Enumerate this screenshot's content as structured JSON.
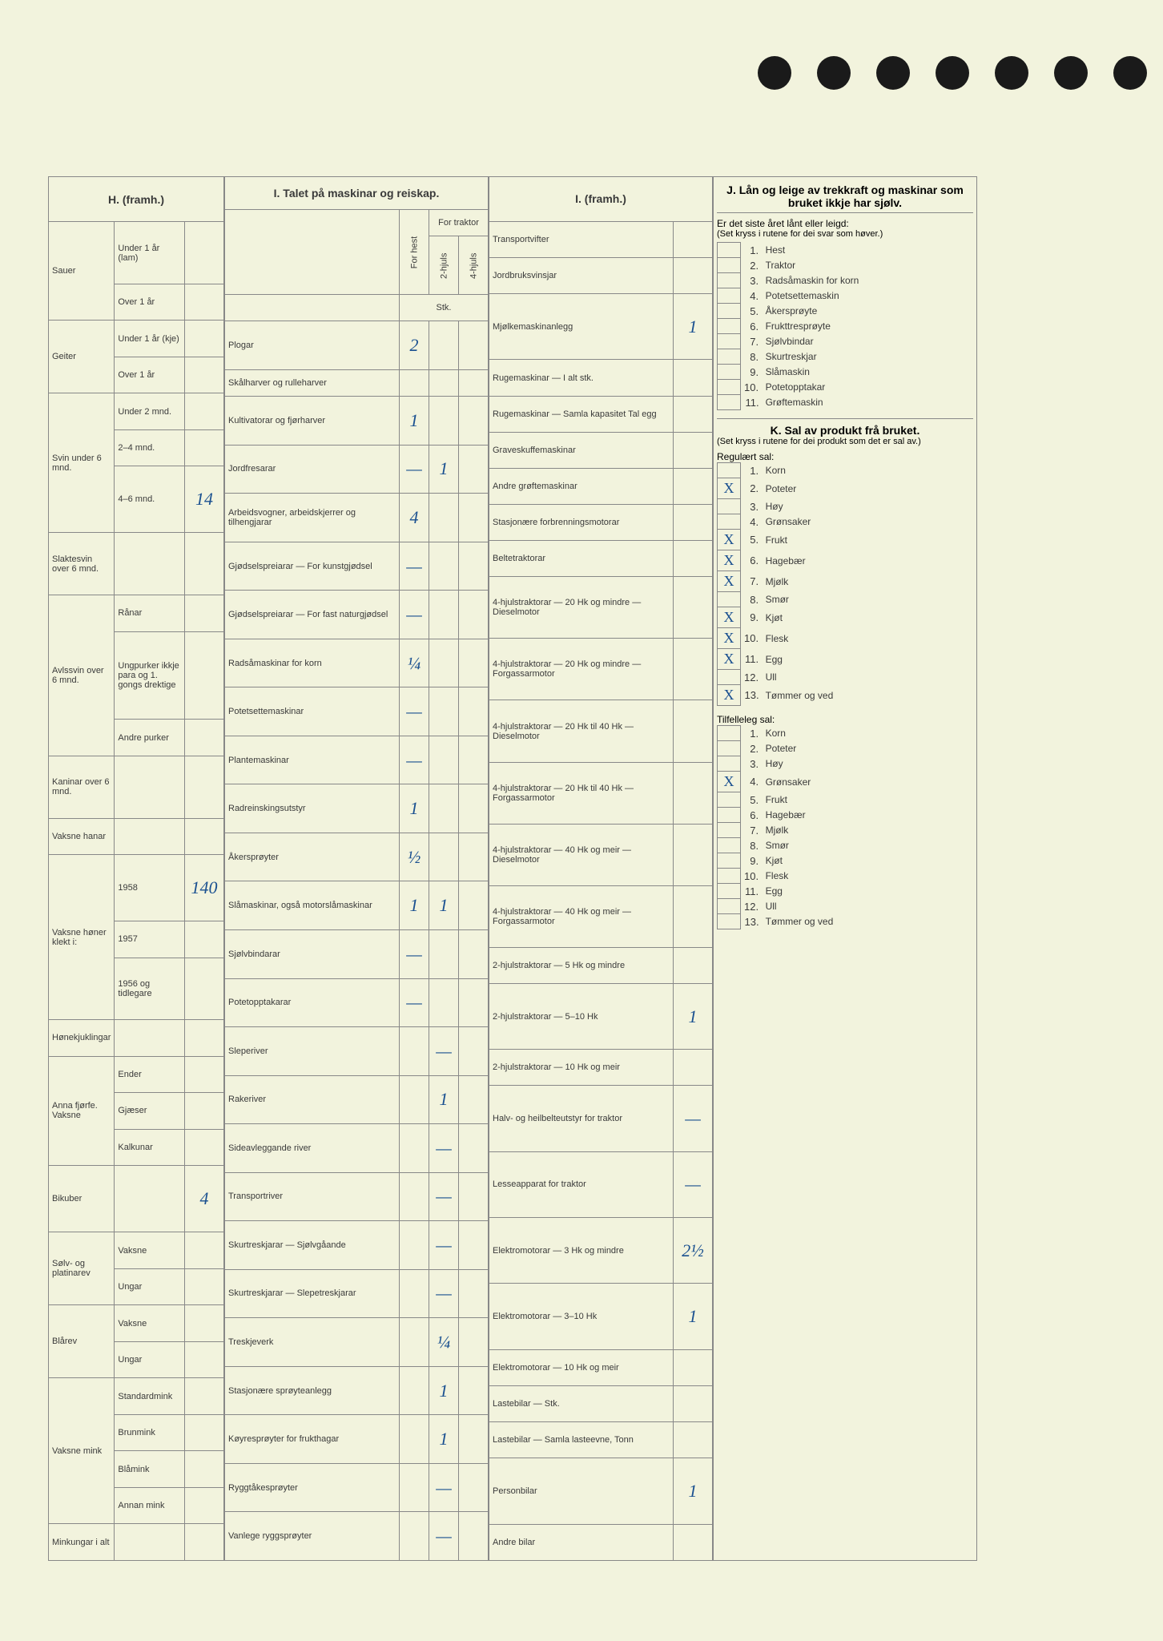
{
  "H": {
    "title": "H. (framh.)",
    "sections": [
      {
        "group": "Sauer",
        "rows": [
          {
            "l": "Under 1 år (lam)",
            "v": ""
          },
          {
            "l": "Over 1 år",
            "v": ""
          }
        ]
      },
      {
        "group": "Geiter",
        "rows": [
          {
            "l": "Under 1 år (kje)",
            "v": ""
          },
          {
            "l": "Over 1 år",
            "v": ""
          }
        ]
      },
      {
        "group": "Svin under 6 mnd.",
        "rows": [
          {
            "l": "Under 2 mnd.",
            "v": ""
          },
          {
            "l": "2–4 mnd.",
            "v": ""
          },
          {
            "l": "4–6 mnd.",
            "v": "14"
          }
        ]
      },
      {
        "group": "Slaktesvin over 6 mnd.",
        "rows": [
          {
            "l": "",
            "v": ""
          }
        ]
      },
      {
        "group": "Avlssvin over 6 mnd.",
        "rows": [
          {
            "l": "Rånar",
            "v": ""
          },
          {
            "l": "Ungpurker ikkje para og 1. gongs drektige",
            "v": ""
          },
          {
            "l": "Andre purker",
            "v": ""
          }
        ]
      },
      {
        "group": "Kaninar over 6 mnd.",
        "rows": [
          {
            "l": "",
            "v": ""
          }
        ]
      },
      {
        "group": "Vaksne hanar",
        "rows": [
          {
            "l": "",
            "v": ""
          }
        ]
      },
      {
        "group": "Vaksne høner klekt i:",
        "rows": [
          {
            "l": "1958",
            "v": "140"
          },
          {
            "l": "1957",
            "v": ""
          },
          {
            "l": "1956 og tidlegare",
            "v": ""
          }
        ]
      },
      {
        "group": "Hønekjuklingar",
        "rows": [
          {
            "l": "",
            "v": ""
          }
        ]
      },
      {
        "group": "Anna fjørfe. Vaksne",
        "rows": [
          {
            "l": "Ender",
            "v": ""
          },
          {
            "l": "Gjæser",
            "v": ""
          },
          {
            "l": "Kalkunar",
            "v": ""
          }
        ]
      },
      {
        "group": "Bikuber",
        "rows": [
          {
            "l": "",
            "v": "4"
          }
        ]
      },
      {
        "group": "Sølv- og platinarev",
        "rows": [
          {
            "l": "Vaksne",
            "v": ""
          },
          {
            "l": "Ungar",
            "v": ""
          }
        ]
      },
      {
        "group": "Blårev",
        "rows": [
          {
            "l": "Vaksne",
            "v": ""
          },
          {
            "l": "Ungar",
            "v": ""
          }
        ]
      },
      {
        "group": "Vaksne mink",
        "rows": [
          {
            "l": "Standardmink",
            "v": ""
          },
          {
            "l": "Brunmink",
            "v": ""
          },
          {
            "l": "Blåmink",
            "v": ""
          },
          {
            "l": "Annan mink",
            "v": ""
          }
        ]
      },
      {
        "group": "Minkungar i alt",
        "rows": [
          {
            "l": "",
            "v": ""
          }
        ]
      }
    ]
  },
  "I": {
    "title": "I. Talet på maskinar og reiskap.",
    "colhdr": {
      "c1": "For hest",
      "c2": "2-hjuls",
      "c3": "4-hjuls",
      "traktor": "For traktor",
      "stk": "Stk."
    },
    "rows": [
      {
        "l": "Plogar",
        "v1": "2",
        "v2": "",
        "v3": ""
      },
      {
        "l": "Skålharver og rulleharver",
        "v1": "",
        "v2": "",
        "v3": ""
      },
      {
        "l": "Kultivatorar og fjørharver",
        "v1": "1",
        "v2": "",
        "v3": ""
      },
      {
        "l": "Jordfresarar",
        "v1": "—",
        "v2": "1",
        "v3": ""
      },
      {
        "l": "Arbeidsvogner, arbeidskjerrer og tilhengjarar",
        "v1": "4",
        "v2": "",
        "v3": ""
      },
      {
        "l": "Gjødselspreiarar — For kunstgjødsel",
        "v1": "—",
        "v2": "",
        "v3": ""
      },
      {
        "l": "Gjødselspreiarar — For fast naturgjødsel",
        "v1": "—",
        "v2": "",
        "v3": ""
      },
      {
        "l": "Radsåmaskinar for korn",
        "v1": "¼",
        "v2": "",
        "v3": ""
      },
      {
        "l": "Potetsettemaskinar",
        "v1": "—",
        "v2": "",
        "v3": ""
      },
      {
        "l": "Plantemaskinar",
        "v1": "—",
        "v2": "",
        "v3": ""
      },
      {
        "l": "Radreinskingsutstyr",
        "v1": "1",
        "v2": "",
        "v3": ""
      },
      {
        "l": "Åkersprøyter",
        "v1": "½",
        "v2": "",
        "v3": ""
      },
      {
        "l": "Slåmaskinar, også motorslåmaskinar",
        "v1": "1",
        "v2": "1",
        "v3": ""
      },
      {
        "l": "Sjølvbindarar",
        "v1": "—",
        "v2": "",
        "v3": ""
      },
      {
        "l": "Potetopptakarar",
        "v1": "—",
        "v2": "",
        "v3": ""
      },
      {
        "l": "Sleperiver",
        "v1": "",
        "v2": "—",
        "v3": ""
      },
      {
        "l": "Rakeriver",
        "v1": "",
        "v2": "1",
        "v3": ""
      },
      {
        "l": "Sideavleggande river",
        "v1": "",
        "v2": "—",
        "v3": ""
      },
      {
        "l": "Transportriver",
        "v1": "",
        "v2": "—",
        "v3": ""
      },
      {
        "l": "Skurtreskjarar — Sjølvgåande",
        "v1": "",
        "v2": "—",
        "v3": ""
      },
      {
        "l": "Skurtreskjarar — Slepetreskjarar",
        "v1": "",
        "v2": "—",
        "v3": ""
      },
      {
        "l": "Treskjeverk",
        "v1": "",
        "v2": "¼",
        "v3": ""
      },
      {
        "l": "Stasjonære sprøyteanlegg",
        "v1": "",
        "v2": "1",
        "v3": ""
      },
      {
        "l": "Køyresprøyter for frukthagar",
        "v1": "",
        "v2": "1",
        "v3": ""
      },
      {
        "l": "Ryggtåkesprøyter",
        "v1": "",
        "v2": "—",
        "v3": ""
      },
      {
        "l": "Vanlege ryggsprøyter",
        "v1": "",
        "v2": "—",
        "v3": ""
      }
    ]
  },
  "I2": {
    "title": "I. (framh.)",
    "rows": [
      {
        "l": "Transportvifter",
        "v": ""
      },
      {
        "l": "Jordbruksvinsjar",
        "v": ""
      },
      {
        "l": "Mjølkemaskinanlegg",
        "v": "1"
      },
      {
        "l": "Rugemaskinar — I alt stk.",
        "v": ""
      },
      {
        "l": "Rugemaskinar — Samla kapasitet Tal egg",
        "v": ""
      },
      {
        "l": "Graveskuffemaskinar",
        "v": ""
      },
      {
        "l": "Andre grøftemaskinar",
        "v": ""
      },
      {
        "l": "Stasjonære forbrenningsmotorar",
        "v": ""
      },
      {
        "l": "Beltetraktorar",
        "v": ""
      },
      {
        "l": "4-hjulstraktorar — 20 Hk og mindre — Dieselmotor",
        "v": ""
      },
      {
        "l": "4-hjulstraktorar — 20 Hk og mindre — Forgassarmotor",
        "v": ""
      },
      {
        "l": "4-hjulstraktorar — 20 Hk til 40 Hk — Dieselmotor",
        "v": ""
      },
      {
        "l": "4-hjulstraktorar — 20 Hk til 40 Hk — Forgassarmotor",
        "v": ""
      },
      {
        "l": "4-hjulstraktorar — 40 Hk og meir — Dieselmotor",
        "v": ""
      },
      {
        "l": "4-hjulstraktorar — 40 Hk og meir — Forgassarmotor",
        "v": ""
      },
      {
        "l": "2-hjulstraktorar — 5 Hk og mindre",
        "v": ""
      },
      {
        "l": "2-hjulstraktorar — 5–10 Hk",
        "v": "1"
      },
      {
        "l": "2-hjulstraktorar — 10 Hk og meir",
        "v": ""
      },
      {
        "l": "Halv- og heilbelteutstyr for traktor",
        "v": "—"
      },
      {
        "l": "Lesseapparat for traktor",
        "v": "—"
      },
      {
        "l": "Elektromotorar — 3 Hk og mindre",
        "v": "2½"
      },
      {
        "l": "Elektromotorar — 3–10 Hk",
        "v": "1"
      },
      {
        "l": "Elektromotorar — 10 Hk og meir",
        "v": ""
      },
      {
        "l": "Lastebilar — Stk.",
        "v": ""
      },
      {
        "l": "Lastebilar — Samla lasteevne, Tonn",
        "v": ""
      },
      {
        "l": "Personbilar",
        "v": "1"
      },
      {
        "l": "Andre bilar",
        "v": ""
      }
    ]
  },
  "J": {
    "title": "J. Lån og leige av trekkraft og maskinar som bruket ikkje har sjølv.",
    "sub": "Er det siste året lånt eller leigd:",
    "note": "(Set kryss i rutene for dei svar som høver.)",
    "items": [
      {
        "n": "1.",
        "l": "Hest",
        "x": ""
      },
      {
        "n": "2.",
        "l": "Traktor",
        "x": ""
      },
      {
        "n": "3.",
        "l": "Radsåmaskin for korn",
        "x": ""
      },
      {
        "n": "4.",
        "l": "Potetsettemaskin",
        "x": ""
      },
      {
        "n": "5.",
        "l": "Åkersprøyte",
        "x": ""
      },
      {
        "n": "6.",
        "l": "Frukttresprøyte",
        "x": ""
      },
      {
        "n": "7.",
        "l": "Sjølvbindar",
        "x": ""
      },
      {
        "n": "8.",
        "l": "Skurtreskjar",
        "x": ""
      },
      {
        "n": "9.",
        "l": "Slåmaskin",
        "x": ""
      },
      {
        "n": "10.",
        "l": "Potetopptakar",
        "x": ""
      },
      {
        "n": "11.",
        "l": "Grøftemaskin",
        "x": ""
      }
    ]
  },
  "K": {
    "title": "K. Sal av produkt frå bruket.",
    "note": "(Set kryss i rutene for dei produkt som det er sal av.)",
    "sub1": "Regulært sal:",
    "items1": [
      {
        "n": "1.",
        "l": "Korn",
        "x": ""
      },
      {
        "n": "2.",
        "l": "Poteter",
        "x": "X"
      },
      {
        "n": "3.",
        "l": "Høy",
        "x": ""
      },
      {
        "n": "4.",
        "l": "Grønsaker",
        "x": ""
      },
      {
        "n": "5.",
        "l": "Frukt",
        "x": "X"
      },
      {
        "n": "6.",
        "l": "Hagebær",
        "x": "X"
      },
      {
        "n": "7.",
        "l": "Mjølk",
        "x": "X"
      },
      {
        "n": "8.",
        "l": "Smør",
        "x": ""
      },
      {
        "n": "9.",
        "l": "Kjøt",
        "x": "X"
      },
      {
        "n": "10.",
        "l": "Flesk",
        "x": "X"
      },
      {
        "n": "11.",
        "l": "Egg",
        "x": "X"
      },
      {
        "n": "12.",
        "l": "Ull",
        "x": ""
      },
      {
        "n": "13.",
        "l": "Tømmer og ved",
        "x": "X"
      }
    ],
    "sub2": "Tilfelleleg sal:",
    "items2": [
      {
        "n": "1.",
        "l": "Korn",
        "x": ""
      },
      {
        "n": "2.",
        "l": "Poteter",
        "x": ""
      },
      {
        "n": "3.",
        "l": "Høy",
        "x": ""
      },
      {
        "n": "4.",
        "l": "Grønsaker",
        "x": "X"
      },
      {
        "n": "5.",
        "l": "Frukt",
        "x": ""
      },
      {
        "n": "6.",
        "l": "Hagebær",
        "x": ""
      },
      {
        "n": "7.",
        "l": "Mjølk",
        "x": ""
      },
      {
        "n": "8.",
        "l": "Smør",
        "x": ""
      },
      {
        "n": "9.",
        "l": "Kjøt",
        "x": ""
      },
      {
        "n": "10.",
        "l": "Flesk",
        "x": ""
      },
      {
        "n": "11.",
        "l": "Egg",
        "x": ""
      },
      {
        "n": "12.",
        "l": "Ull",
        "x": ""
      },
      {
        "n": "13.",
        "l": "Tømmer og ved",
        "x": ""
      }
    ]
  }
}
